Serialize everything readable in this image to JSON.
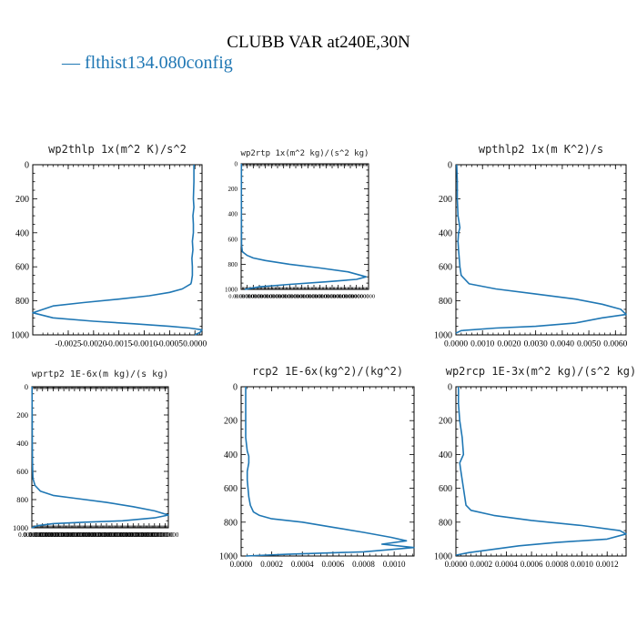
{
  "page": {
    "title": "CLUBB VAR at240E,30N",
    "legend_label": "— flthist134.080config",
    "line_color": "#1f77b4"
  },
  "chart_data": [
    {
      "type": "line",
      "title": "wp2thlp  1x(m^2 K)/s^2",
      "ylim": [
        0,
        1000
      ],
      "xlim": [
        -0.0032,
        0.00014
      ],
      "yticks": [
        0,
        200,
        400,
        600,
        800,
        1000
      ],
      "xticks": [
        -0.0025,
        -0.002,
        -0.0015,
        -0.001,
        -0.0005,
        0.0
      ],
      "xtick_labels": [
        "-0.0025",
        "-0.0020",
        "-0.0015",
        "-0.0010",
        "-0.0005",
        "0.0000"
      ],
      "series": [
        {
          "x": [
            -2e-05,
            -2e-05,
            -3e-05,
            -2e-05,
            -4e-05,
            -3e-05,
            -3e-05,
            -5e-05,
            -4e-05,
            -6e-05,
            -5e-05,
            -5e-05,
            -7e-05,
            -8e-05,
            -0.00025,
            -0.0005,
            -0.0009,
            -0.0015,
            -0.0022,
            -0.0028,
            -0.0032,
            -0.0028,
            -0.002,
            -0.0012,
            -0.0005,
            -0.0001,
            0.00014,
            0.0001,
            0.0
          ],
          "y": [
            0,
            100,
            200,
            250,
            300,
            350,
            400,
            450,
            500,
            550,
            600,
            650,
            690,
            700,
            730,
            750,
            770,
            790,
            810,
            830,
            870,
            900,
            920,
            935,
            950,
            960,
            970,
            985,
            1000
          ]
        }
      ]
    },
    {
      "type": "line",
      "title": "wp2rtp  1x(m^2 kg)/(s^2 kg)",
      "ylim": [
        0,
        1000
      ],
      "xlim": [
        0,
        0.0105
      ],
      "yticks": [
        0,
        200,
        400,
        600,
        800,
        1000
      ],
      "xticks": [
        0,
        0.0005,
        0.001,
        0.0015,
        0.002,
        0.0025,
        0.003,
        0.0035,
        0.004,
        0.0045,
        0.005,
        0.0055,
        0.006,
        0.0065,
        0.007,
        0.0075,
        0.008,
        0.0085,
        0.009,
        0.0095,
        0.01
      ],
      "xtick_labels": [
        "0.0000000",
        "0.0000000",
        "0.0000000",
        "0.0000000",
        "0.0000000",
        "0.0000000",
        "0.0000000",
        "0.0000000",
        "0.0000000",
        "0.0000000",
        "0.0000000",
        "0.0000000",
        "0.0000000",
        "0.0000000",
        "0.0000000",
        "0.0000000",
        "0.0000000",
        "0.0000000",
        "0.0000000",
        "0.0000000",
        "0.0000000"
      ],
      "series": [
        {
          "x": [
            2e-05,
            2e-05,
            2e-05,
            3e-05,
            4e-05,
            0.0001,
            0.0005,
            0.001,
            0.002,
            0.004,
            0.0065,
            0.0088,
            0.0103,
            0.0095,
            0.007,
            0.004,
            0.0015,
            0.0003
          ],
          "y": [
            0,
            200,
            400,
            550,
            650,
            700,
            730,
            750,
            770,
            800,
            830,
            860,
            900,
            920,
            940,
            960,
            980,
            1000
          ]
        }
      ]
    },
    {
      "type": "line",
      "title": "wpthlp2  1x(m K^2)/s",
      "ylim": [
        0,
        1000
      ],
      "xlim": [
        0,
        0.0064
      ],
      "yticks": [
        0,
        200,
        400,
        600,
        800,
        1000
      ],
      "xticks": [
        0,
        0.001,
        0.002,
        0.003,
        0.004,
        0.005,
        0.006
      ],
      "xtick_labels": [
        "0.0000",
        "0.0010",
        "0.0020",
        "0.0030",
        "0.0040",
        "0.0050",
        "0.0060"
      ],
      "series": [
        {
          "x": [
            3e-05,
            5e-05,
            5e-05,
            8e-05,
            0.00015,
            0.0001,
            8e-05,
            0.0001,
            0.00015,
            0.0002,
            0.0005,
            0.0015,
            0.003,
            0.0045,
            0.0055,
            0.0062,
            0.0064,
            0.0055,
            0.0045,
            0.003,
            0.0015,
            0.0002,
            0.0
          ],
          "y": [
            0,
            100,
            200,
            300,
            370,
            400,
            450,
            500,
            600,
            650,
            700,
            730,
            760,
            790,
            820,
            850,
            880,
            900,
            930,
            950,
            960,
            975,
            990
          ]
        }
      ]
    },
    {
      "type": "line",
      "title": "wprtp2  1E-6x(m kg)/(s kg)",
      "ylim": [
        0,
        1000
      ],
      "xlim": [
        0,
        0.0128
      ],
      "yticks": [
        0,
        200,
        400,
        600,
        800,
        1000
      ],
      "xticks": [
        0,
        0.0005,
        0.001,
        0.0015,
        0.002,
        0.0025,
        0.003,
        0.0035,
        0.004,
        0.0045,
        0.005,
        0.0055,
        0.006,
        0.0065,
        0.007,
        0.0075,
        0.008,
        0.0085,
        0.009,
        0.0095,
        0.01,
        0.0105,
        0.011,
        0.0115,
        0.012,
        0.0125
      ],
      "xtick_labels": [
        "0.0000000",
        "0.0000000",
        "0.0000000",
        "0.0000000",
        "0.0000000",
        "0.0000000",
        "0.0000000",
        "0.0000000",
        "0.0000000",
        "0.0000000",
        "0.0000000",
        "0.0000000",
        "0.0000000",
        "0.0000000",
        "0.0000000",
        "0.0000000",
        "0.0000000",
        "0.0000000",
        "0.0000000",
        "0.0000000",
        "0.0000000",
        "0.0000000",
        "0.0000000",
        "0.0000000",
        "0.0000000",
        "0.0000000"
      ],
      "series": [
        {
          "x": [
            2e-05,
            3e-05,
            4e-05,
            6e-05,
            0.0001,
            0.0003,
            0.0008,
            0.002,
            0.004,
            0.007,
            0.0095,
            0.0115,
            0.0128,
            0.0115,
            0.0085,
            0.005,
            0.002,
            0.0005,
            0.0
          ],
          "y": [
            0,
            200,
            400,
            550,
            650,
            700,
            740,
            770,
            790,
            820,
            850,
            880,
            910,
            930,
            950,
            960,
            970,
            985,
            1000
          ]
        }
      ]
    },
    {
      "type": "line",
      "title": "rcp2  1E-6x(kg^2)/(kg^2)",
      "ylim": [
        0,
        1000
      ],
      "xlim": [
        0,
        0.00113
      ],
      "yticks": [
        0,
        200,
        400,
        600,
        800,
        1000
      ],
      "xticks": [
        0,
        0.0002,
        0.0004,
        0.0006,
        0.0008,
        0.001
      ],
      "xtick_labels": [
        "0.0000",
        "0.0002",
        "0.0004",
        "0.0006",
        "0.0008",
        "0.0010"
      ],
      "series": [
        {
          "x": [
            3e-05,
            3e-05,
            3e-05,
            4e-05,
            5e-05,
            5e-05,
            4e-05,
            4e-05,
            5e-05,
            6e-05,
            8e-05,
            0.00012,
            0.0002,
            0.0004,
            0.0006,
            0.0008,
            0.00098,
            0.00108,
            0.00092,
            0.00113,
            0.0008,
            0.0003,
            3e-05
          ],
          "y": [
            0,
            200,
            300,
            380,
            410,
            450,
            500,
            550,
            650,
            700,
            740,
            760,
            780,
            800,
            830,
            860,
            890,
            910,
            930,
            950,
            975,
            990,
            1000
          ]
        }
      ]
    },
    {
      "type": "line",
      "title": "wp2rcp  1E-3x(m^2 kg)/(s^2 kg)",
      "ylim": [
        0,
        1000
      ],
      "xlim": [
        0,
        0.00135
      ],
      "yticks": [
        0,
        200,
        400,
        600,
        800,
        1000
      ],
      "xticks": [
        0,
        0.0002,
        0.0004,
        0.0006,
        0.0008,
        0.001,
        0.0012
      ],
      "xtick_labels": [
        "0.0000",
        "0.0002",
        "0.0004",
        "0.0006",
        "0.0008",
        "0.0010",
        "0.0012"
      ],
      "series": [
        {
          "x": [
            2e-05,
            2e-05,
            3e-05,
            5e-05,
            6e-05,
            3e-05,
            4e-05,
            6e-05,
            8e-05,
            0.00012,
            0.0003,
            0.0006,
            0.001,
            0.0013,
            0.00135,
            0.0012,
            0.0008,
            0.0005,
            0.0003,
            0.0001,
            0.0
          ],
          "y": [
            0,
            100,
            200,
            300,
            400,
            450,
            500,
            600,
            700,
            730,
            760,
            790,
            820,
            850,
            870,
            900,
            920,
            940,
            960,
            980,
            995
          ]
        }
      ]
    }
  ]
}
